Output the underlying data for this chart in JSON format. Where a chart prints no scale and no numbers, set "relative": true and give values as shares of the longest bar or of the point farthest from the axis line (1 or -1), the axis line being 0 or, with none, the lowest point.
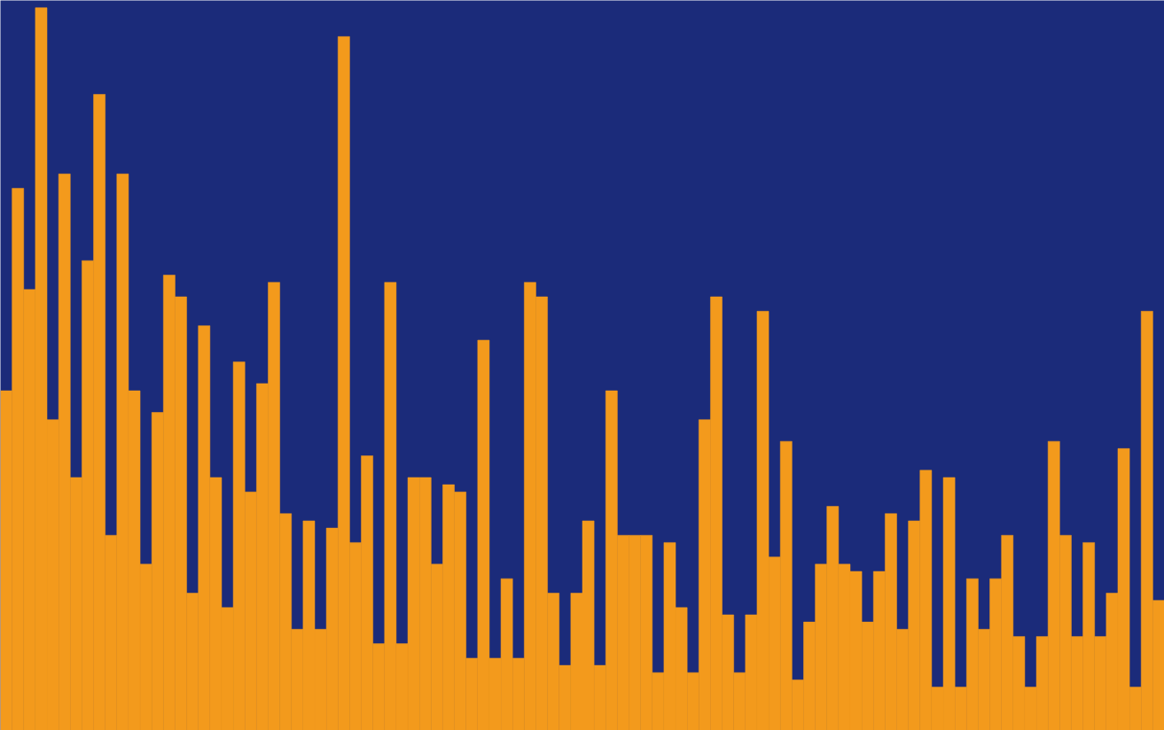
{
  "chart_data": {
    "type": "bar",
    "relative": true,
    "color": "#f39a1c",
    "categories": [
      null,
      null,
      null,
      null,
      null,
      null,
      null,
      null,
      null,
      null,
      null,
      null,
      null,
      null,
      null,
      null,
      null,
      null,
      null,
      null,
      null,
      null,
      null,
      null,
      null,
      null,
      null,
      null,
      null,
      null,
      null,
      null,
      null,
      null,
      null,
      null,
      null,
      null,
      null,
      null,
      null,
      null,
      null,
      null,
      null,
      null,
      null,
      null,
      null,
      null,
      null,
      null,
      null,
      null,
      null,
      null,
      null,
      null,
      null,
      null,
      null,
      null,
      null,
      null,
      null,
      null,
      null,
      null,
      null,
      null,
      null,
      null,
      null,
      null,
      null,
      null,
      null,
      null,
      null,
      null,
      null,
      null,
      null,
      null,
      null,
      null,
      null,
      null,
      null,
      null,
      null,
      null,
      null,
      null,
      null,
      null,
      null,
      null,
      null,
      null
    ],
    "values": [
      0.47,
      0.75,
      0.61,
      1.0,
      0.43,
      0.77,
      0.35,
      0.65,
      0.88,
      0.27,
      0.77,
      0.47,
      0.23,
      0.44,
      0.63,
      0.6,
      0.19,
      0.56,
      0.35,
      0.17,
      0.51,
      0.33,
      0.48,
      0.62,
      0.3,
      0.14,
      0.29,
      0.14,
      0.28,
      0.96,
      0.26,
      0.38,
      0.12,
      0.62,
      0.12,
      0.35,
      0.35,
      0.23,
      0.34,
      0.33,
      0.1,
      0.54,
      0.1,
      0.21,
      0.1,
      0.62,
      0.6,
      0.19,
      0.09,
      0.19,
      0.29,
      0.09,
      0.47,
      0.27,
      0.27,
      0.27,
      0.08,
      0.26,
      0.17,
      0.08,
      0.43,
      0.6,
      0.16,
      0.08,
      0.16,
      0.58,
      0.24,
      0.4,
      0.07,
      0.15,
      0.23,
      0.31,
      0.23,
      0.22,
      0.15,
      0.22,
      0.3,
      0.14,
      0.29,
      0.36,
      0.06,
      0.35,
      0.06,
      0.21,
      0.14,
      0.21,
      0.27,
      0.13,
      0.06,
      0.13,
      0.4,
      0.27,
      0.13,
      0.26,
      0.13,
      0.19,
      0.39,
      0.06,
      0.58,
      0.18
    ]
  }
}
